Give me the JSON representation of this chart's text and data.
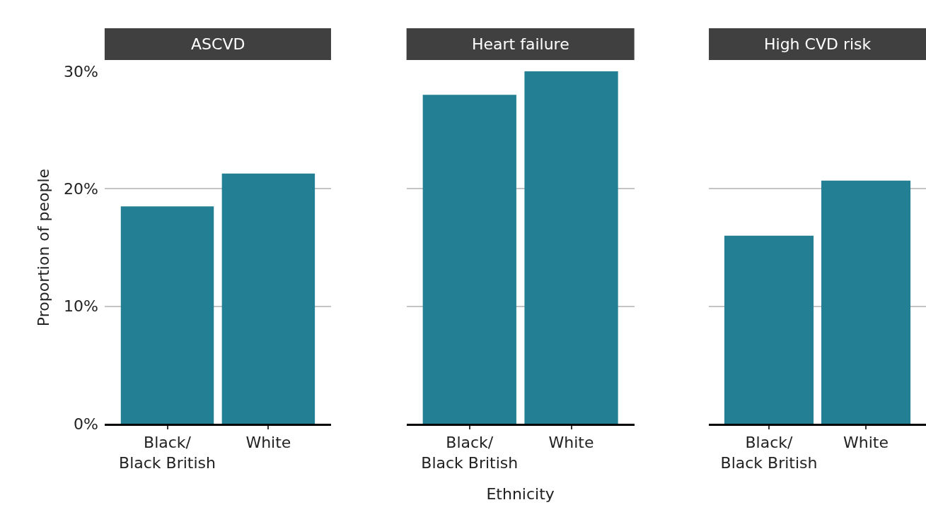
{
  "chart_data": [
    {
      "type": "bar",
      "title": "ASCVD",
      "ylabel": "Proportion of people",
      "categories": [
        "Black/\nBlack British",
        "White"
      ],
      "values": [
        18.5,
        21.3
      ],
      "color": "#237f94",
      "ylim": [
        0,
        30
      ],
      "yticks": [
        {
          "value": 0,
          "label": "0%"
        },
        {
          "value": 10,
          "label": "10%"
        },
        {
          "value": 20,
          "label": "20%"
        },
        {
          "value": 30,
          "label": "30%"
        }
      ],
      "grid": "y"
    },
    {
      "type": "bar",
      "title": "Heart failure",
      "xlabel": "Ethnicity",
      "categories": [
        "Black/\nBlack British",
        "White"
      ],
      "values": [
        28.0,
        30.0
      ],
      "color": "#237f94",
      "ylim": [
        0,
        30
      ],
      "yticks": [
        {
          "value": 0,
          "label": null
        },
        {
          "value": 10,
          "label": null
        },
        {
          "value": 20,
          "label": null
        },
        {
          "value": 30,
          "label": null
        }
      ],
      "grid": "y",
      "tick_labels": "x"
    },
    {
      "type": "bar",
      "title": "High CVD risk",
      "categories": [
        "Black/\nBlack British",
        "White"
      ],
      "values": [
        16.0,
        20.7
      ],
      "color": "#237f94",
      "ylim": [
        0,
        30
      ],
      "yticks": [
        {
          "value": 0,
          "label": null
        },
        {
          "value": 10,
          "label": null
        },
        {
          "value": 20,
          "label": null
        },
        {
          "value": 30,
          "label": null
        }
      ],
      "grid": "y",
      "tick_labels": "x"
    }
  ]
}
